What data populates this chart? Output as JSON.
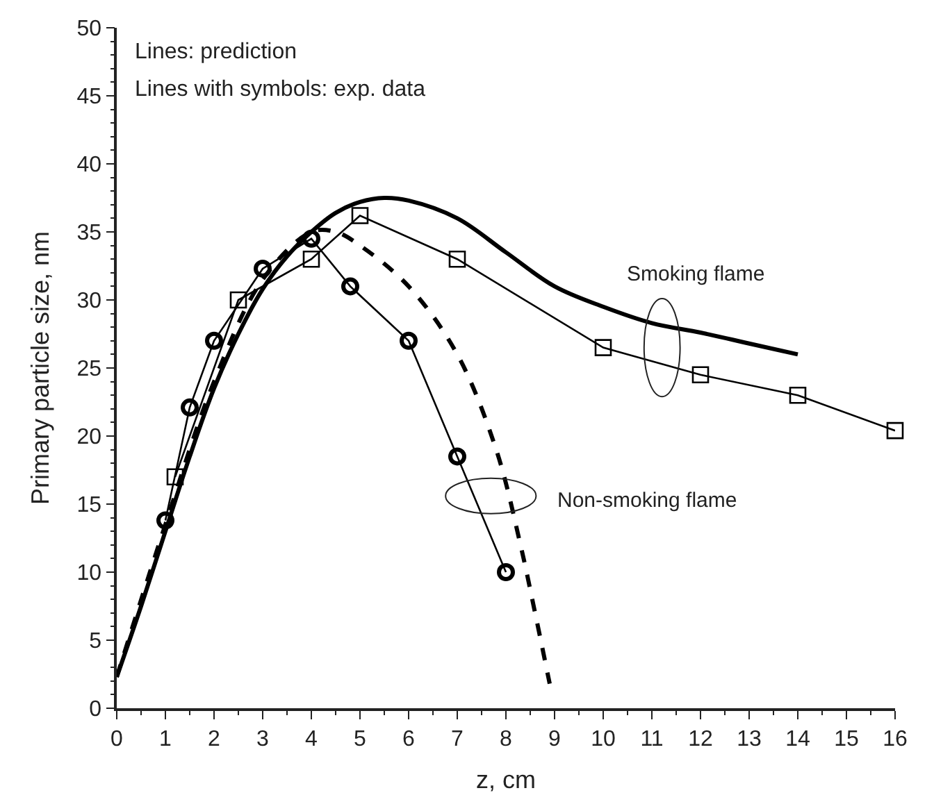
{
  "chart_data": {
    "type": "line",
    "xlabel": "z, cm",
    "ylabel": "Primary particle size, nm",
    "xlim": [
      0,
      16
    ],
    "xticks": [
      0,
      1,
      2,
      3,
      4,
      5,
      6,
      7,
      8,
      9,
      10,
      11,
      12,
      13,
      14,
      15,
      16
    ],
    "ylim": [
      0,
      50
    ],
    "yticks": [
      0,
      5,
      10,
      15,
      20,
      25,
      30,
      35,
      40,
      45,
      50
    ],
    "series": [
      {
        "color": "#000000",
        "marker": "none",
        "line_style": "solid",
        "x": [
          0,
          0.5,
          1,
          1.5,
          2,
          2.5,
          3,
          3.5,
          4,
          4.5,
          5,
          5.5,
          6,
          7,
          8,
          9,
          10,
          11,
          12,
          13,
          14
        ],
        "values": [
          2.3,
          7.5,
          13,
          18.5,
          23.5,
          27.5,
          30.8,
          33.2,
          35,
          36.4,
          37.2,
          37.5,
          37.3,
          36,
          33.5,
          31,
          29.5,
          28.3,
          27.6,
          26.8,
          26
        ]
      },
      {
        "color": "#000000",
        "marker": "none",
        "line_style": "dashed",
        "x": [
          0,
          1,
          2,
          3,
          4,
          4.5,
          5,
          6,
          7,
          7.8,
          8.3,
          8.6,
          8.9
        ],
        "values": [
          2.3,
          13.5,
          24,
          31.5,
          35,
          35,
          34,
          31,
          26,
          19,
          12,
          7,
          1.8
        ]
      },
      {
        "color": "#000000",
        "marker": "square",
        "line_style": "solid",
        "x": [
          1.2,
          2.5,
          4,
          5,
          7,
          10,
          12,
          14,
          16
        ],
        "values": [
          17,
          30,
          33,
          36.2,
          33,
          26.5,
          24.5,
          23,
          20.4
        ]
      },
      {
        "color": "#000000",
        "marker": "circle",
        "line_style": "solid",
        "x": [
          1,
          1.5,
          2,
          3,
          4,
          4.8,
          6,
          7,
          8
        ],
        "values": [
          13.8,
          22.1,
          27,
          32.3,
          34.5,
          31,
          27,
          18.5,
          10
        ]
      }
    ],
    "annotations": [
      "Lines: prediction",
      "Lines with symbols: exp. data",
      "Smoking flame",
      "Non-smoking flame"
    ]
  }
}
